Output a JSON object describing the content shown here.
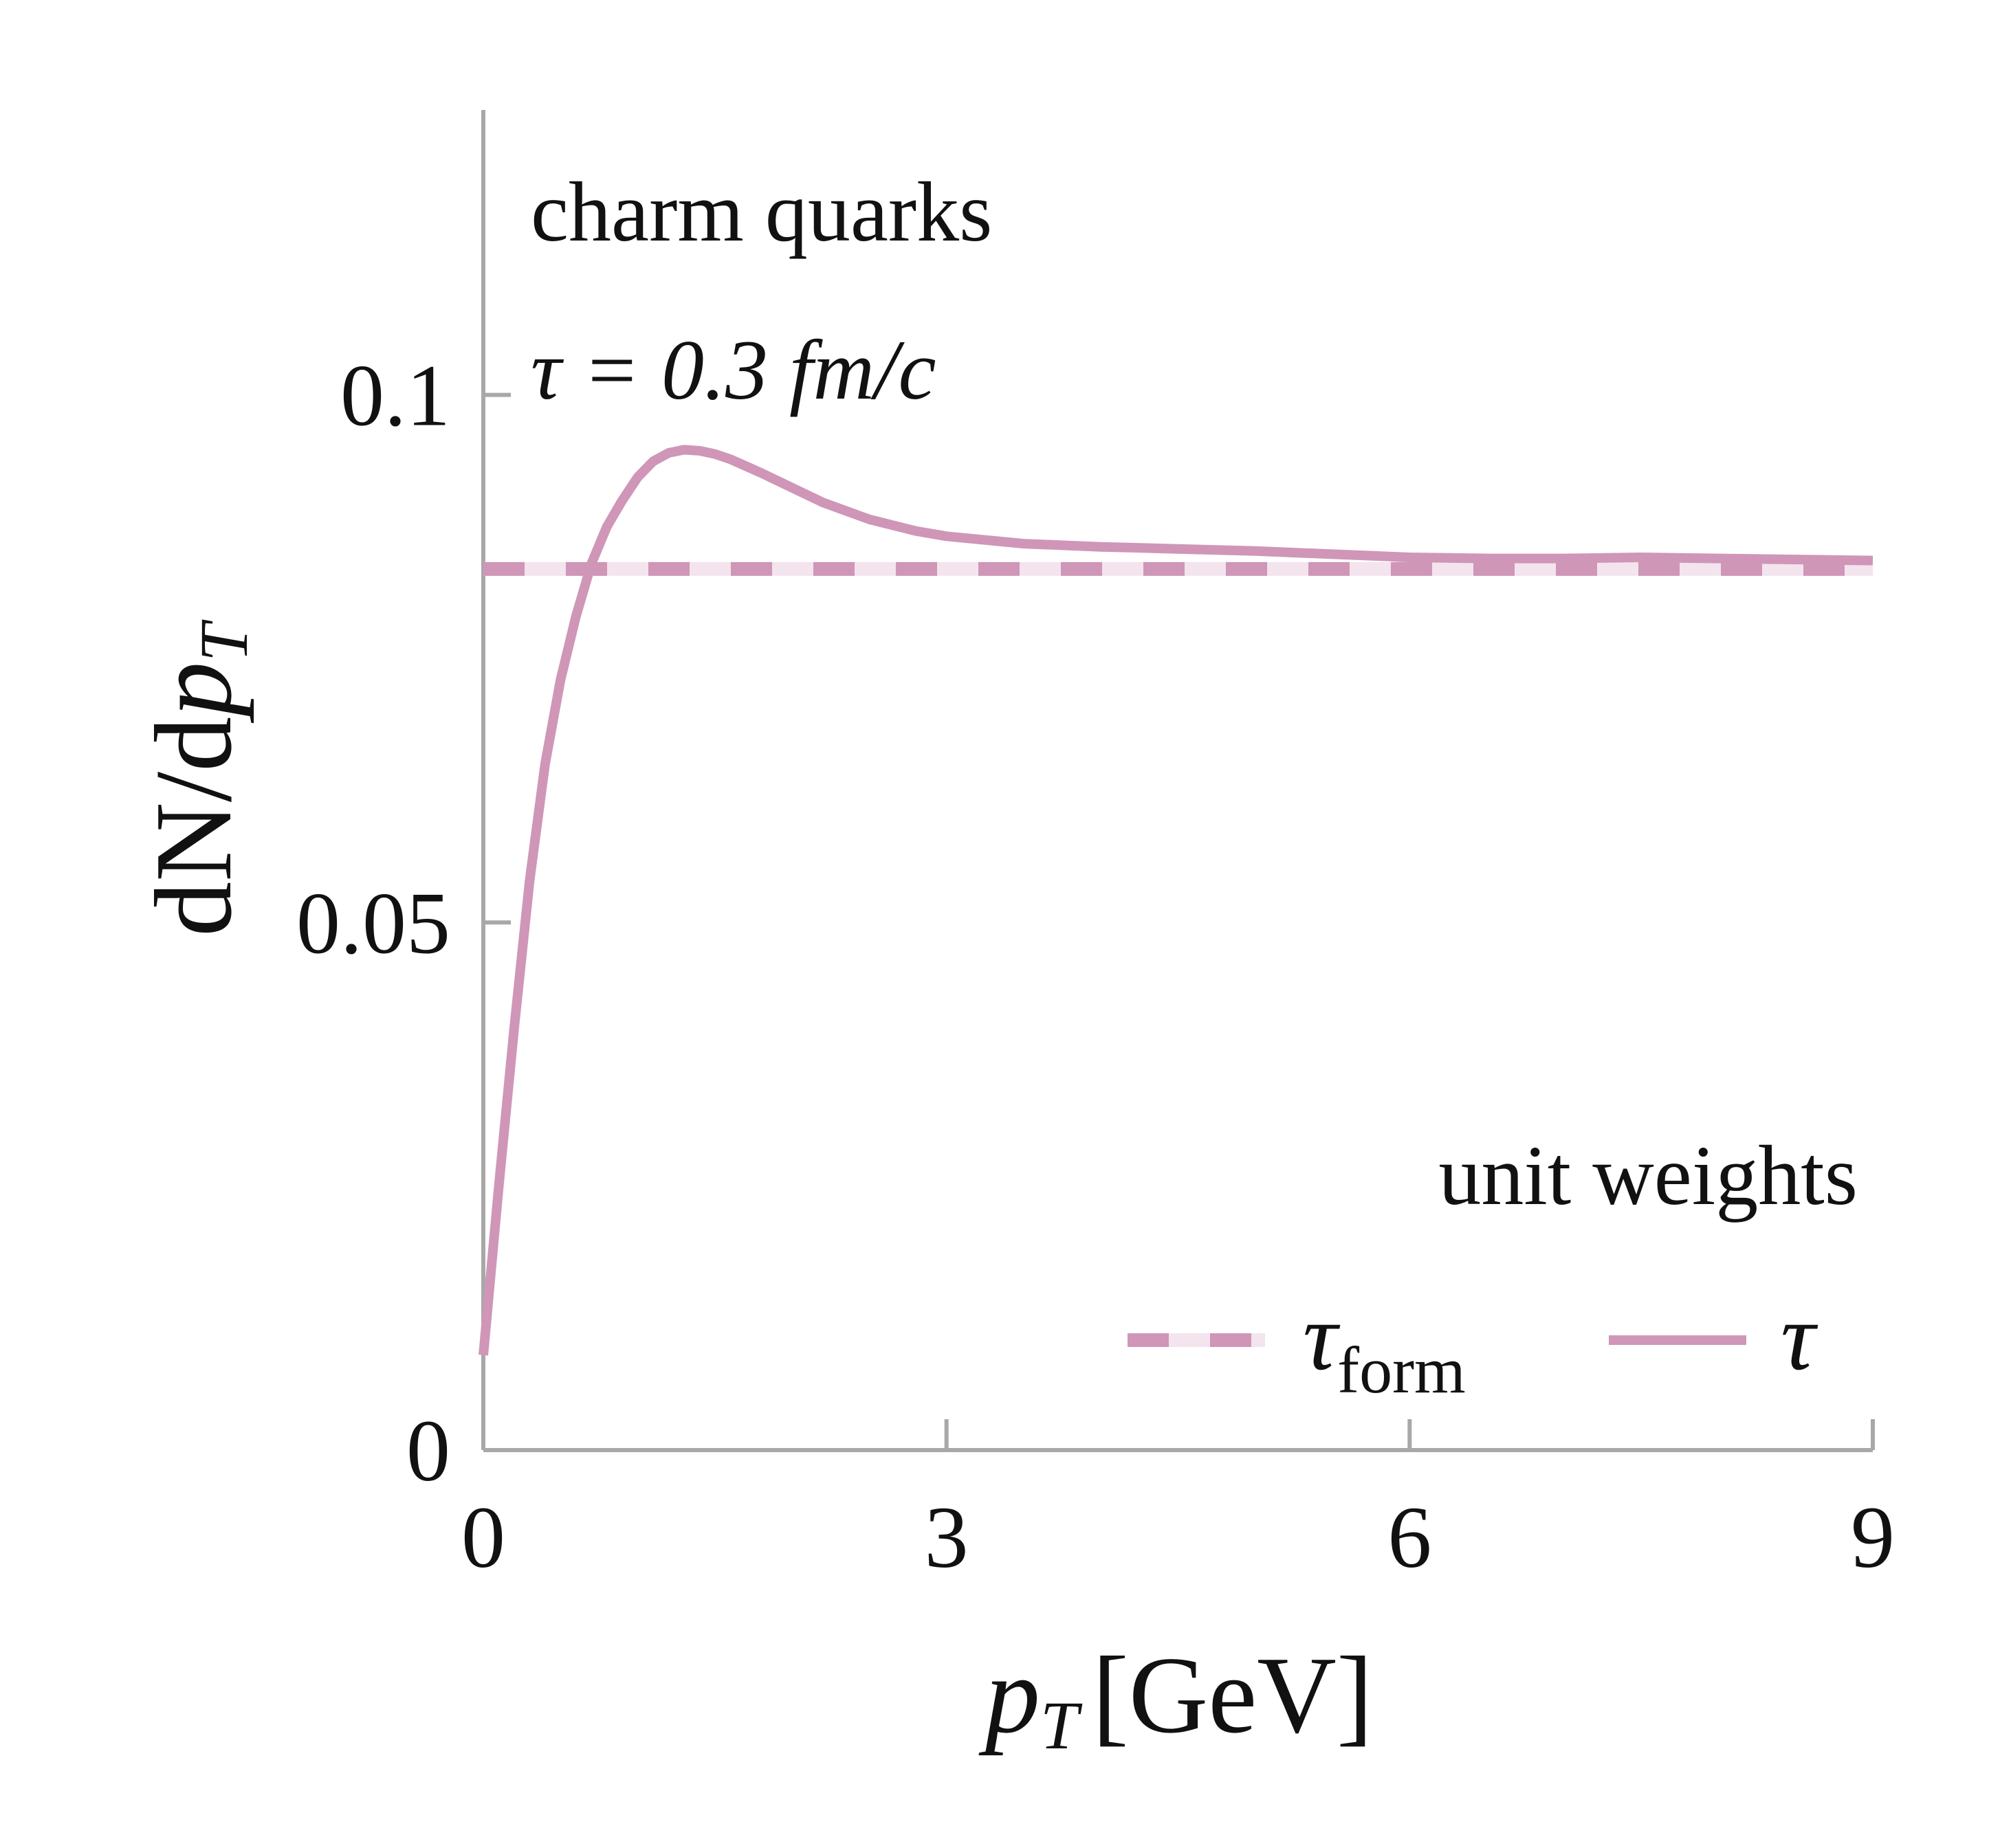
{
  "chart_data": {
    "type": "line",
    "xlabel": {
      "var": "p",
      "sub": "T",
      "unit": "[GeV]"
    },
    "ylabel": {
      "prefix": "dN/d",
      "var": "p",
      "sub": "T"
    },
    "xlim": [
      0,
      9
    ],
    "ylim": [
      0,
      0.127
    ],
    "xticks": [
      0,
      3,
      6,
      9
    ],
    "xtick_labels": [
      "0",
      "3",
      "6",
      "9"
    ],
    "yticks": [
      0,
      0.05,
      0.1
    ],
    "ytick_labels": [
      "0",
      "0.05",
      "0.1"
    ],
    "grid": false,
    "annotations": {
      "line1": "charm quarks",
      "line2": "τ = 0.3 fm/c",
      "legend_title": "unit weights"
    },
    "legend_position": "lower-right",
    "colors": {
      "series": "#cf96b8",
      "dash_light": "#f3e4ee",
      "axis": "#a8a8a8"
    },
    "series": [
      {
        "name": "τ_form",
        "label_main": "τ",
        "label_sub": "form",
        "style": "dashed",
        "x": [
          0,
          9
        ],
        "y": [
          0.0835,
          0.0835
        ]
      },
      {
        "name": "τ",
        "label_main": "τ",
        "label_sub": "",
        "style": "solid",
        "x": [
          0.0,
          0.1,
          0.2,
          0.3,
          0.4,
          0.5,
          0.6,
          0.7,
          0.8,
          0.9,
          1.0,
          1.1,
          1.2,
          1.3,
          1.4,
          1.5,
          1.6,
          1.8,
          2.0,
          2.2,
          2.5,
          2.8,
          3.0,
          3.5,
          4.0,
          4.5,
          5.0,
          5.5,
          6.0,
          6.5,
          7.0,
          7.5,
          8.0,
          8.5,
          9.0
        ],
        "y": [
          0.009,
          0.025,
          0.04,
          0.054,
          0.065,
          0.073,
          0.079,
          0.084,
          0.0875,
          0.09,
          0.0922,
          0.0937,
          0.0945,
          0.0948,
          0.0947,
          0.0944,
          0.0939,
          0.0926,
          0.0912,
          0.0898,
          0.0882,
          0.0871,
          0.0866,
          0.0859,
          0.0856,
          0.0854,
          0.0852,
          0.0849,
          0.0846,
          0.0845,
          0.0845,
          0.0846,
          0.0845,
          0.0844,
          0.0843
        ]
      }
    ]
  }
}
